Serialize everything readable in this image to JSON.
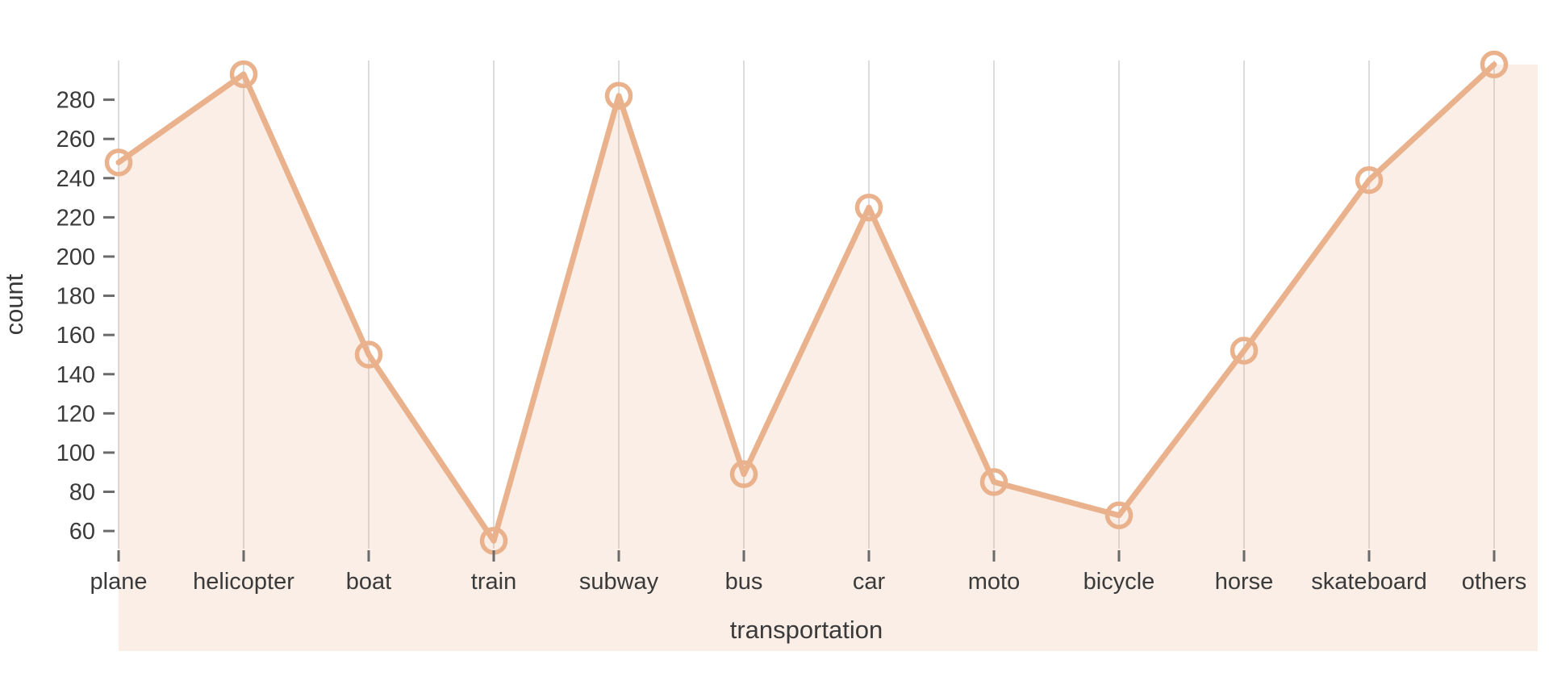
{
  "chart_data": {
    "type": "area",
    "title": "",
    "xlabel": "transportation",
    "ylabel": "count",
    "categories": [
      "plane",
      "helicopter",
      "boat",
      "train",
      "subway",
      "bus",
      "car",
      "moto",
      "bicycle",
      "horse",
      "skateboard",
      "others"
    ],
    "values": [
      248,
      293,
      150,
      55,
      282,
      89,
      225,
      85,
      68,
      152,
      239,
      298
    ],
    "ylim": [
      51,
      300
    ],
    "yticks": [
      60,
      80,
      100,
      120,
      140,
      160,
      180,
      200,
      220,
      240,
      260,
      280
    ],
    "grid": "vertical-only",
    "legend": "none",
    "colors": {
      "line": "#eab28c",
      "area": "#eab28c",
      "area_opacity": 0.22,
      "gridline": "#dcdcdc",
      "tick_mark": "#6b6b6b",
      "label_text": "#3a3a3a",
      "background": "#ffffff"
    }
  }
}
